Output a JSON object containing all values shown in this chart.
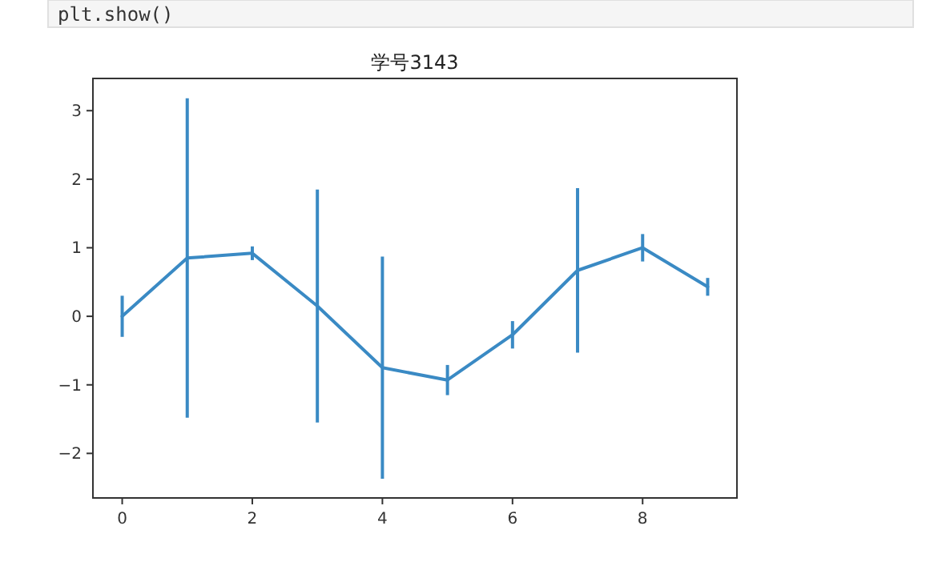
{
  "chart_data": {
    "type": "line",
    "title": "学号3143",
    "annotations": [
      "plt.show()"
    ],
    "x": [
      0,
      1,
      2,
      3,
      4,
      5,
      6,
      7,
      8,
      9
    ],
    "series": [
      {
        "color": "#3a8ac4",
        "values": [
          0.0,
          0.85,
          0.92,
          0.15,
          -0.75,
          -0.93,
          -0.27,
          0.67,
          1.0,
          0.43
        ],
        "errors": [
          0.3,
          2.33,
          0.1,
          1.7,
          1.62,
          0.22,
          0.2,
          1.2,
          0.2,
          0.13
        ]
      }
    ],
    "xlim": [
      -0.45,
      9.45
    ],
    "ylim": [
      -2.65,
      3.47
    ],
    "xticks": [
      0,
      2,
      4,
      6,
      8
    ],
    "yticks": [
      -2,
      -1,
      0,
      1,
      2,
      3
    ],
    "grid": false,
    "marker": "none",
    "line_style": "solid"
  }
}
